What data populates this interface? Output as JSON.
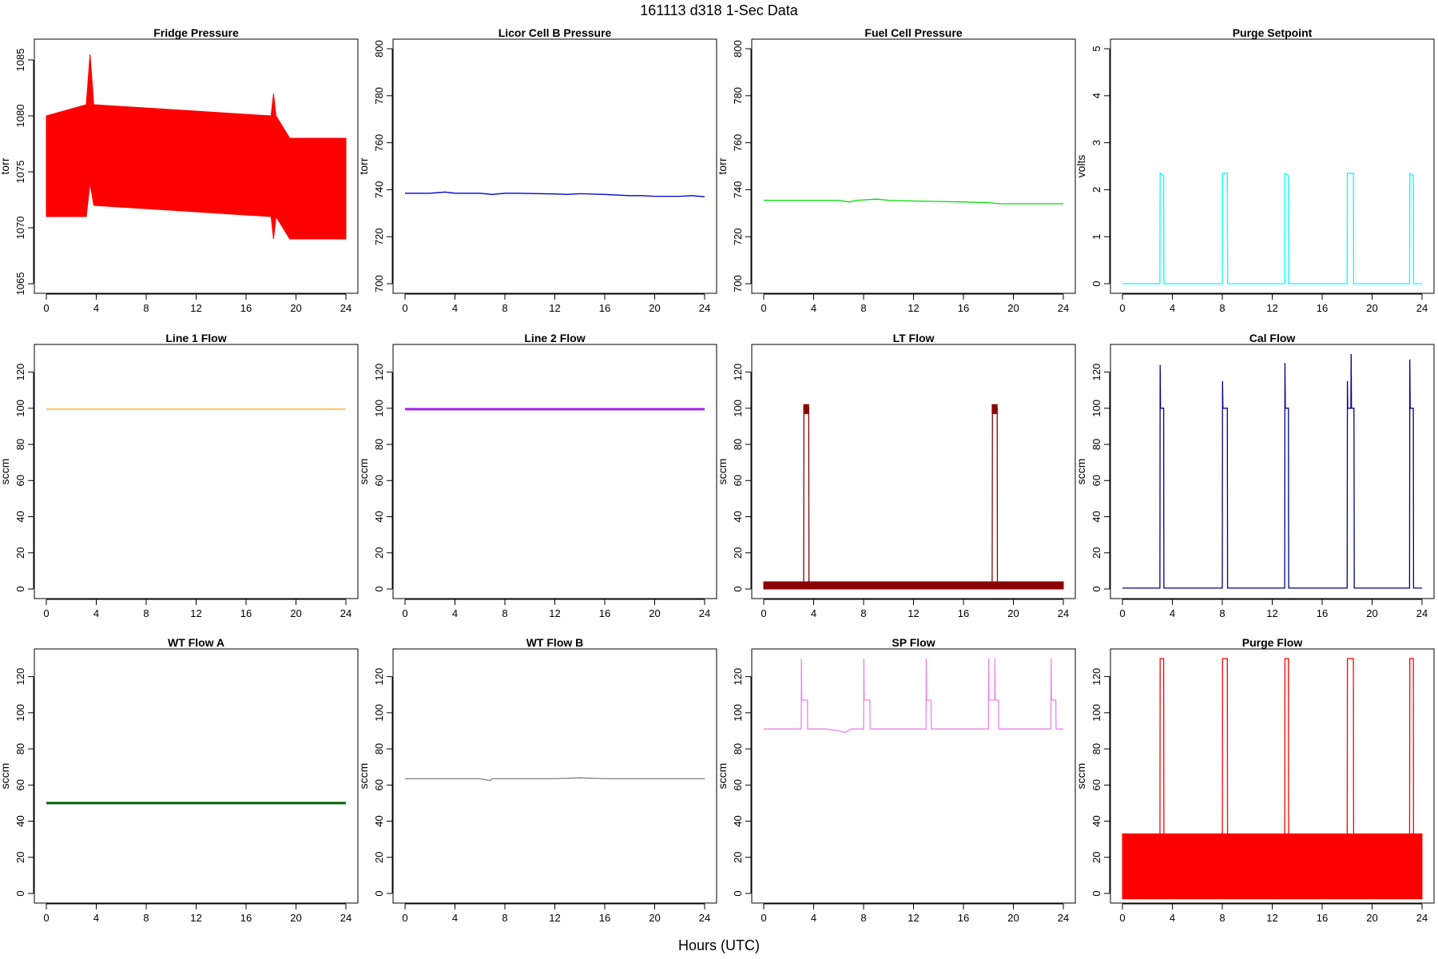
{
  "title": "161113   d318   1-Sec Data",
  "x_axis_label": "Hours (UTC)",
  "chart_data": [
    {
      "type": "line",
      "title": "Fridge Pressure",
      "ylabel": "torr",
      "color": "#ff0000",
      "xlim": [
        0,
        24
      ],
      "ylim": [
        1065,
        1086
      ],
      "xticks": [
        0,
        4,
        8,
        12,
        16,
        20,
        24
      ],
      "yticks": [
        1065,
        1070,
        1075,
        1080,
        1085
      ],
      "series": [
        {
          "style": "band",
          "x": [
            0,
            3.2,
            3.5,
            3.8,
            18,
            18.2,
            18.4,
            19.5,
            24
          ],
          "y": [
            1075.5,
            1076,
            1077,
            1076,
            1076,
            1075,
            1074,
            1074,
            1074
          ],
          "low": [
            1071,
            1071,
            1074,
            1072,
            1071,
            1069,
            1071,
            1069,
            1069
          ],
          "high": [
            1080,
            1081,
            1085.5,
            1081,
            1080,
            1082,
            1080,
            1078,
            1078
          ]
        }
      ]
    },
    {
      "type": "line",
      "title": "Licor Cell B Pressure",
      "ylabel": "torr",
      "color": "#0000cc",
      "xlim": [
        0,
        24
      ],
      "ylim": [
        700,
        800
      ],
      "xticks": [
        0,
        4,
        8,
        12,
        16,
        20,
        24
      ],
      "yticks": [
        700,
        720,
        740,
        760,
        780,
        800
      ],
      "series": [
        {
          "x": [
            0,
            2,
            3.2,
            4,
            6,
            7,
            8,
            9,
            12,
            13,
            14,
            16,
            18,
            19,
            20,
            22,
            23,
            24
          ],
          "y": [
            738.5,
            738.5,
            739,
            738.5,
            738.5,
            738,
            738.5,
            738.5,
            738.2,
            738,
            738.3,
            738,
            737.5,
            737.5,
            737.2,
            737.2,
            737.5,
            737
          ]
        }
      ]
    },
    {
      "type": "line",
      "title": "Fuel Cell Pressure",
      "ylabel": "torr",
      "color": "#00dd00",
      "xlim": [
        0,
        24
      ],
      "ylim": [
        700,
        800
      ],
      "xticks": [
        0,
        4,
        8,
        12,
        16,
        20,
        24
      ],
      "yticks": [
        700,
        720,
        740,
        760,
        780,
        800
      ],
      "series": [
        {
          "x": [
            0,
            2,
            4,
            6,
            6.8,
            7.5,
            9,
            10,
            12,
            14,
            16,
            18,
            19,
            20,
            22,
            24
          ],
          "y": [
            735.5,
            735.5,
            735.5,
            735.5,
            734.8,
            735.5,
            736,
            735.5,
            735.2,
            735,
            734.8,
            734.5,
            734,
            734,
            734,
            734
          ]
        }
      ]
    },
    {
      "type": "line",
      "title": "Purge Setpoint",
      "ylabel": "volts",
      "color": "#00ffff",
      "xlim": [
        0,
        24
      ],
      "ylim": [
        0,
        5
      ],
      "xticks": [
        0,
        4,
        8,
        12,
        16,
        20,
        24
      ],
      "yticks": [
        0,
        1,
        2,
        3,
        4,
        5
      ],
      "series": [
        {
          "x": [
            0,
            3.0,
            3.02,
            3.3,
            3.32,
            8.0,
            8.02,
            8.4,
            8.42,
            13.0,
            13.02,
            13.3,
            13.32,
            18.0,
            18.02,
            18.5,
            18.52,
            23.0,
            23.02,
            23.3,
            23.32,
            24
          ],
          "y": [
            0,
            0,
            2.35,
            2.3,
            0,
            0,
            2.35,
            2.35,
            0,
            0,
            2.35,
            2.3,
            0,
            0,
            2.35,
            2.35,
            0,
            0,
            2.35,
            2.3,
            0,
            0
          ]
        }
      ]
    },
    {
      "type": "line",
      "title": "Line 1 Flow",
      "ylabel": "sccm",
      "color": "#ffa500",
      "xlim": [
        0,
        24
      ],
      "ylim": [
        0,
        130
      ],
      "xticks": [
        0,
        4,
        8,
        12,
        16,
        20,
        24
      ],
      "yticks": [
        0,
        20,
        40,
        60,
        80,
        100,
        120
      ],
      "series": [
        {
          "x": [
            0,
            24
          ],
          "y": [
            99.5,
            99.5
          ]
        }
      ]
    },
    {
      "type": "line",
      "title": "Line 2 Flow",
      "ylabel": "sccm",
      "color": "#a020f0",
      "xlim": [
        0,
        24
      ],
      "ylim": [
        0,
        130
      ],
      "xticks": [
        0,
        4,
        8,
        12,
        16,
        20,
        24
      ],
      "yticks": [
        0,
        20,
        40,
        60,
        80,
        100,
        120
      ],
      "series": [
        {
          "x": [
            0,
            24
          ],
          "y": [
            99.5,
            99.5
          ]
        }
      ]
    },
    {
      "type": "line",
      "title": "LT Flow",
      "ylabel": "sccm",
      "color": "#8b0000",
      "xlim": [
        0,
        24
      ],
      "ylim": [
        0,
        130
      ],
      "xticks": [
        0,
        4,
        8,
        12,
        16,
        20,
        24
      ],
      "yticks": [
        0,
        20,
        40,
        60,
        80,
        100,
        120
      ],
      "series": [
        {
          "style": "band",
          "x": [
            0,
            3.2,
            3.6,
            18.3,
            18.7,
            24
          ],
          "y": [
            2,
            2,
            2,
            2,
            2,
            2
          ],
          "low": [
            0,
            0,
            0,
            0,
            0,
            0
          ],
          "high": [
            4,
            4,
            4,
            4,
            4,
            4
          ]
        },
        {
          "x": [
            0,
            3.2,
            3.22,
            3.6,
            3.62,
            18.3,
            18.32,
            18.7,
            18.72,
            24
          ],
          "y": [
            2,
            2,
            100,
            100,
            2,
            2,
            100,
            100,
            2,
            2
          ]
        },
        {
          "style": "band",
          "x": [
            3.2,
            3.6
          ],
          "y": [
            100,
            100
          ],
          "low": [
            97,
            97
          ],
          "high": [
            102,
            102
          ]
        },
        {
          "style": "band",
          "x": [
            18.3,
            18.7
          ],
          "y": [
            100,
            100
          ],
          "low": [
            97,
            97
          ],
          "high": [
            102,
            102
          ]
        }
      ]
    },
    {
      "type": "line",
      "title": "Cal Flow",
      "ylabel": "sccm",
      "color": "#00008b",
      "xlim": [
        0,
        24
      ],
      "ylim": [
        0,
        130
      ],
      "xticks": [
        0,
        4,
        8,
        12,
        16,
        20,
        24
      ],
      "yticks": [
        0,
        20,
        40,
        60,
        80,
        100,
        120
      ],
      "series": [
        {
          "x": [
            0,
            3.0,
            3.02,
            3.05,
            3.3,
            3.32,
            8.0,
            8.02,
            8.05,
            8.4,
            8.42,
            13.0,
            13.02,
            13.05,
            13.3,
            13.32,
            18.0,
            18.02,
            18.05,
            18.3,
            18.32,
            18.35,
            18.55,
            18.57,
            23.0,
            23.02,
            23.05,
            23.3,
            23.32,
            24
          ],
          "y": [
            0.5,
            0.5,
            124,
            100,
            100,
            0.5,
            0.5,
            115,
            100,
            100,
            0.5,
            0.5,
            125,
            100,
            100,
            0.5,
            0.5,
            115,
            100,
            100,
            130,
            100,
            100,
            0.5,
            0.5,
            127,
            100,
            100,
            0.5,
            0.5
          ]
        }
      ]
    },
    {
      "type": "line",
      "title": "WT Flow A",
      "ylabel": "sccm",
      "color": "#006400",
      "xlim": [
        0,
        24
      ],
      "ylim": [
        0,
        130
      ],
      "xticks": [
        0,
        4,
        8,
        12,
        16,
        20,
        24
      ],
      "yticks": [
        0,
        20,
        40,
        60,
        80,
        100,
        120
      ],
      "series": [
        {
          "x": [
            0,
            24
          ],
          "y": [
            50,
            50
          ]
        }
      ]
    },
    {
      "type": "line",
      "title": "WT Flow B",
      "ylabel": "sccm",
      "color": "#808080",
      "xlim": [
        0,
        24
      ],
      "ylim": [
        0,
        130
      ],
      "xticks": [
        0,
        4,
        8,
        12,
        16,
        20,
        24
      ],
      "yticks": [
        0,
        20,
        40,
        60,
        80,
        100,
        120
      ],
      "series": [
        {
          "x": [
            0,
            6,
            6.8,
            7,
            8,
            12,
            14,
            16,
            20,
            24
          ],
          "y": [
            63.5,
            63.5,
            62.5,
            63.5,
            63.5,
            63.5,
            64,
            63.5,
            63.5,
            63.5
          ]
        }
      ]
    },
    {
      "type": "line",
      "title": "SP Flow",
      "ylabel": "sccm",
      "color": "#ee82ee",
      "xlim": [
        0,
        24
      ],
      "ylim": [
        0,
        130
      ],
      "xticks": [
        0,
        4,
        8,
        12,
        16,
        20,
        24
      ],
      "yticks": [
        0,
        20,
        40,
        60,
        80,
        100,
        120
      ],
      "series": [
        {
          "x": [
            0,
            3.0,
            3.02,
            3.05,
            3.5,
            3.52,
            5,
            6,
            6.5,
            7,
            8.0,
            8.02,
            8.05,
            8.5,
            8.52,
            13.0,
            13.02,
            13.05,
            13.4,
            13.42,
            18.0,
            18.02,
            18.05,
            18.5,
            18.52,
            18.55,
            18.8,
            18.82,
            23.0,
            23.02,
            23.05,
            23.4,
            23.42,
            24
          ],
          "y": [
            91,
            91,
            130,
            107,
            107,
            91,
            91,
            90,
            89,
            91,
            91,
            130,
            107,
            107,
            91,
            91,
            130,
            107,
            107,
            91,
            91,
            130,
            107,
            107,
            130,
            107,
            107,
            91,
            91,
            130,
            107,
            107,
            91,
            91
          ]
        }
      ]
    },
    {
      "type": "line",
      "title": "Purge Flow",
      "ylabel": "sccm",
      "color": "#ff0000",
      "xlim": [
        0,
        24
      ],
      "ylim": [
        0,
        130
      ],
      "xticks": [
        0,
        4,
        8,
        12,
        16,
        20,
        24
      ],
      "yticks": [
        0,
        20,
        40,
        60,
        80,
        100,
        120
      ],
      "series": [
        {
          "style": "band",
          "x": [
            0,
            24
          ],
          "y": [
            15,
            15
          ],
          "low": [
            -3,
            -3
          ],
          "high": [
            33,
            33
          ]
        },
        {
          "x": [
            0,
            3.0,
            3.02,
            3.3,
            3.32,
            8.0,
            8.02,
            8.4,
            8.42,
            13.0,
            13.02,
            13.3,
            13.32,
            18.0,
            18.02,
            18.5,
            18.52,
            23.0,
            23.02,
            23.3,
            23.32,
            24
          ],
          "y": [
            15,
            15,
            130,
            130,
            15,
            15,
            130,
            130,
            15,
            15,
            130,
            130,
            15,
            15,
            130,
            130,
            15,
            15,
            130,
            130,
            15,
            15
          ]
        }
      ]
    }
  ]
}
